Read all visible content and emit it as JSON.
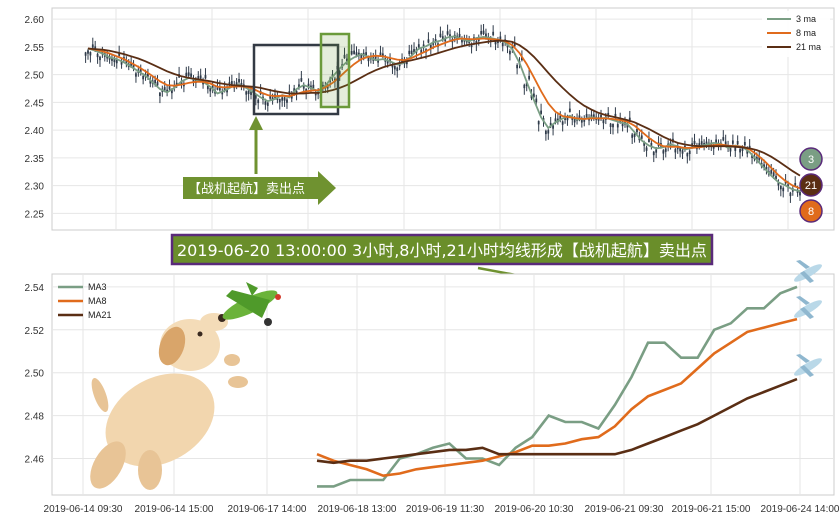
{
  "colors": {
    "ma3": "#7a9e84",
    "ma8": "#e06b1c",
    "ma21": "#5a2e14",
    "candle": "#2f3b4a",
    "grid": "#e6e6e6",
    "banner_bg": "#6a8e2a",
    "banner_border": "#5a2a7a",
    "arrow_green": "#6f9230",
    "box_dark": "#333a44",
    "box_green": "#6a9a3a"
  },
  "annotation": {
    "banner_text": "2019-06-20 13:00:00 3小时,8小时,21小时均线形成【战机起航】卖出点",
    "arrow_label": "【战机起航】卖出点"
  },
  "badges": {
    "ma3": "3",
    "ma21": "21",
    "ma8": "8"
  },
  "decor": {
    "dog_icon": "dog-illustration",
    "plane_icon": "airplane-icon"
  },
  "chart_data": [
    {
      "type": "line",
      "subtype": "candlestick-with-moving-averages",
      "ylim": [
        2.22,
        2.62
      ],
      "yticks": [
        "2.25",
        "2.30",
        "2.35",
        "2.40",
        "2.45",
        "2.50",
        "2.55",
        "2.60"
      ],
      "legend_position": "top-right",
      "grid": true,
      "series": [
        {
          "name": "3 ma",
          "color_key": "ma3",
          "values": [
            2.547,
            2.543,
            2.538,
            2.531,
            2.528,
            2.522,
            2.514,
            2.506,
            2.498,
            2.486,
            2.474,
            2.468,
            2.476,
            2.488,
            2.494,
            2.491,
            2.487,
            2.478,
            2.466,
            2.471,
            2.478,
            2.482,
            2.476,
            2.468,
            2.459,
            2.452,
            2.456,
            2.463,
            2.459,
            2.474,
            2.481,
            2.476,
            2.47,
            2.48,
            2.496,
            2.511,
            2.523,
            2.531,
            2.537,
            2.532,
            2.526,
            2.528,
            2.524,
            2.518,
            2.522,
            2.534,
            2.547,
            2.551,
            2.558,
            2.561,
            2.567,
            2.569,
            2.564,
            2.56,
            2.566,
            2.568,
            2.566,
            2.563,
            2.558,
            2.546,
            2.521,
            2.487,
            2.454,
            2.423,
            2.404,
            2.414,
            2.421,
            2.426,
            2.419,
            2.42,
            2.423,
            2.421,
            2.422,
            2.418,
            2.414,
            2.411,
            2.396,
            2.381,
            2.372,
            2.367,
            2.369,
            2.374,
            2.371,
            2.365,
            2.368,
            2.371,
            2.374,
            2.377,
            2.375,
            2.368,
            2.372,
            2.37,
            2.36,
            2.346,
            2.332,
            2.318,
            2.306,
            2.3,
            2.293,
            2.29
          ]
        },
        {
          "name": "8 ma",
          "color_key": "ma8",
          "values": [
            2.547,
            2.545,
            2.542,
            2.538,
            2.533,
            2.528,
            2.521,
            2.514,
            2.506,
            2.497,
            2.488,
            2.481,
            2.48,
            2.482,
            2.485,
            2.487,
            2.487,
            2.484,
            2.478,
            2.477,
            2.478,
            2.479,
            2.478,
            2.474,
            2.468,
            2.463,
            2.461,
            2.462,
            2.461,
            2.465,
            2.469,
            2.471,
            2.472,
            2.477,
            2.485,
            2.496,
            2.508,
            2.519,
            2.528,
            2.532,
            2.534,
            2.533,
            2.53,
            2.527,
            2.526,
            2.53,
            2.536,
            2.542,
            2.549,
            2.554,
            2.559,
            2.563,
            2.565,
            2.564,
            2.564,
            2.565,
            2.564,
            2.563,
            2.56,
            2.553,
            2.539,
            2.519,
            2.495,
            2.47,
            2.448,
            2.433,
            2.425,
            2.423,
            2.421,
            2.42,
            2.421,
            2.421,
            2.421,
            2.42,
            2.418,
            2.415,
            2.408,
            2.397,
            2.386,
            2.377,
            2.371,
            2.37,
            2.37,
            2.368,
            2.368,
            2.369,
            2.371,
            2.373,
            2.374,
            2.372,
            2.371,
            2.37,
            2.365,
            2.356,
            2.345,
            2.332,
            2.319,
            2.308,
            2.3,
            2.295
          ]
        },
        {
          "name": "21 ma",
          "color_key": "ma21",
          "values": [
            2.547,
            2.546,
            2.545,
            2.543,
            2.54,
            2.537,
            2.533,
            2.529,
            2.524,
            2.518,
            2.512,
            2.506,
            2.501,
            2.497,
            2.494,
            2.492,
            2.49,
            2.488,
            2.485,
            2.483,
            2.481,
            2.48,
            2.479,
            2.478,
            2.476,
            2.473,
            2.47,
            2.468,
            2.466,
            2.466,
            2.466,
            2.467,
            2.467,
            2.469,
            2.472,
            2.476,
            2.481,
            2.488,
            2.495,
            2.502,
            2.508,
            2.513,
            2.517,
            2.52,
            2.523,
            2.526,
            2.529,
            2.532,
            2.536,
            2.54,
            2.544,
            2.548,
            2.551,
            2.554,
            2.556,
            2.558,
            2.56,
            2.561,
            2.561,
            2.559,
            2.553,
            2.544,
            2.532,
            2.518,
            2.503,
            2.489,
            2.476,
            2.464,
            2.453,
            2.444,
            2.437,
            2.431,
            2.427,
            2.424,
            2.421,
            2.418,
            2.414,
            2.408,
            2.402,
            2.395,
            2.388,
            2.382,
            2.377,
            2.374,
            2.372,
            2.371,
            2.371,
            2.371,
            2.371,
            2.371,
            2.37,
            2.369,
            2.367,
            2.364,
            2.359,
            2.352,
            2.344,
            2.335,
            2.326,
            2.318
          ]
        }
      ]
    },
    {
      "type": "line",
      "x": [
        "2019-06-18 13:00",
        "",
        "",
        "",
        "",
        "2019-06-19 11:30",
        "",
        "",
        "",
        "",
        "",
        "2019-06-20 10:30",
        "",
        "",
        "",
        "",
        "",
        "2019-06-21 09:30",
        "",
        "",
        "",
        "",
        "",
        "2019-06-21 15:00",
        "",
        "",
        "",
        "",
        "",
        "2019-06-24 14:00"
      ],
      "xtick_labels": [
        "2019-06-14 09:30",
        "2019-06-14 15:00",
        "2019-06-17 14:00",
        "2019-06-18 13:00",
        "2019-06-19 11:30",
        "2019-06-20 10:30",
        "2019-06-21 09:30",
        "2019-06-21 15:00",
        "2019-06-24 14:00"
      ],
      "ylim": [
        2.443,
        2.546
      ],
      "yticks": [
        "2.46",
        "2.48",
        "2.50",
        "2.52",
        "2.54"
      ],
      "legend_position": "top-left",
      "grid": true,
      "series": [
        {
          "name": "MA3",
          "color_key": "ma3",
          "values": [
            2.447,
            2.447,
            2.45,
            2.45,
            2.45,
            2.46,
            2.462,
            2.465,
            2.467,
            2.46,
            2.46,
            2.457,
            2.465,
            2.47,
            2.48,
            2.477,
            2.477,
            2.474,
            2.485,
            2.498,
            2.514,
            2.514,
            2.507,
            2.507,
            2.52,
            2.523,
            2.53,
            2.53,
            2.537,
            2.54
          ]
        },
        {
          "name": "MA8",
          "color_key": "ma8",
          "values": [
            2.462,
            2.459,
            2.457,
            2.455,
            2.452,
            2.453,
            2.455,
            2.456,
            2.457,
            2.458,
            2.459,
            2.461,
            2.463,
            2.466,
            2.466,
            2.467,
            2.469,
            2.47,
            2.475,
            2.483,
            2.489,
            2.492,
            2.495,
            2.502,
            2.509,
            2.514,
            2.519,
            2.521,
            2.523,
            2.525
          ]
        },
        {
          "name": "MA21",
          "color_key": "ma21",
          "values": [
            2.459,
            2.458,
            2.459,
            2.459,
            2.46,
            2.461,
            2.462,
            2.463,
            2.464,
            2.464,
            2.465,
            2.462,
            2.462,
            2.462,
            2.462,
            2.462,
            2.462,
            2.462,
            2.462,
            2.464,
            2.467,
            2.47,
            2.473,
            2.476,
            2.48,
            2.484,
            2.488,
            2.491,
            2.494,
            2.497
          ]
        }
      ]
    }
  ]
}
